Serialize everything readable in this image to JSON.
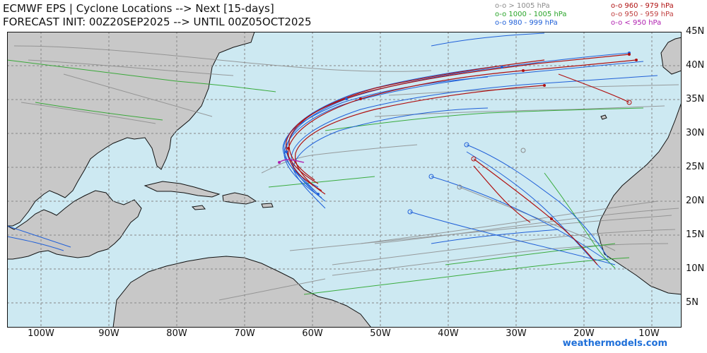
{
  "title": {
    "line1": "ECMWF EPS | Cyclone Locations --> Next [15-days]",
    "line2": "FORECAST INIT: 00Z20SEP2025 --> UNTIL 00Z05OCT2025"
  },
  "legend": [
    {
      "text": "o-o > 1005 hPa",
      "color": "#8c8c8c"
    },
    {
      "text": "o-o 1000 - 1005 hPa",
      "color": "#2aa52a"
    },
    {
      "text": "o-o 980 - 999 hPa",
      "color": "#2060d8"
    },
    {
      "text": "o-o 960 - 979 hPa",
      "color": "#b01010"
    },
    {
      "text": "o-o 950 - 959 hPa",
      "color": "#c04040"
    },
    {
      "text": "o-o < 950 hPa",
      "color": "#b020b0"
    }
  ],
  "axes": {
    "lat_labels": [
      "45N",
      "40N",
      "35N",
      "30N",
      "25N",
      "20N",
      "15N",
      "10N",
      "5N"
    ],
    "lon_labels": [
      "100W",
      "90W",
      "80W",
      "70W",
      "60W",
      "50W",
      "40W",
      "30W",
      "20W",
      "10W"
    ]
  },
  "colors": {
    "ocean": "#cde9f2",
    "land": "#c8c8c8",
    "border": "#111111",
    "gridline": "#888888"
  },
  "credit": "weathermodels.com"
}
